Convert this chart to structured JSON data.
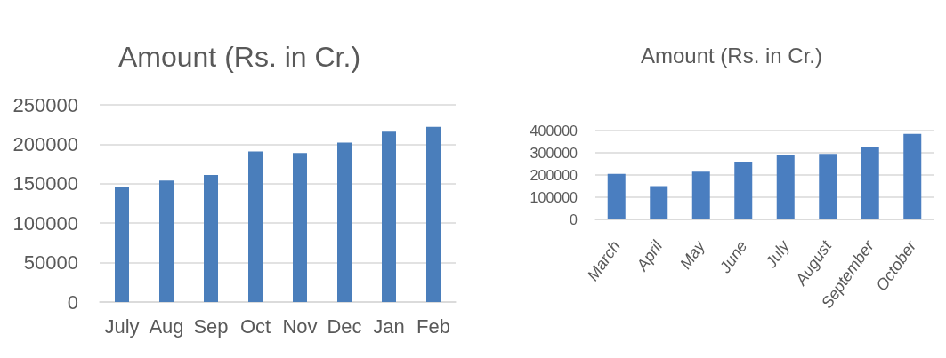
{
  "chart_data": [
    {
      "type": "bar",
      "title": "Amount (Rs. in Cr.)",
      "categories": [
        "July",
        "Aug",
        "Sep",
        "Oct",
        "Nov",
        "Dec",
        "Jan",
        "Feb"
      ],
      "values": [
        146000,
        154000,
        161000,
        191000,
        189000,
        202000,
        216000,
        222000
      ],
      "color": "#4a7ebb",
      "ylim": [
        0,
        250000
      ],
      "yticks": [
        0,
        50000,
        100000,
        150000,
        200000,
        250000
      ],
      "grid": "y"
    },
    {
      "type": "bar",
      "title": "Amount (Rs. in Cr.)",
      "categories": [
        "March",
        "April",
        "May",
        "June",
        "July",
        "August",
        "September",
        "October"
      ],
      "values": [
        205000,
        150000,
        215000,
        260000,
        290000,
        295000,
        325000,
        385000
      ],
      "color": "#4a7ec0",
      "ylim": [
        0,
        400000
      ],
      "yticks": [
        0,
        100000,
        200000,
        300000,
        400000
      ],
      "grid": "y"
    }
  ]
}
